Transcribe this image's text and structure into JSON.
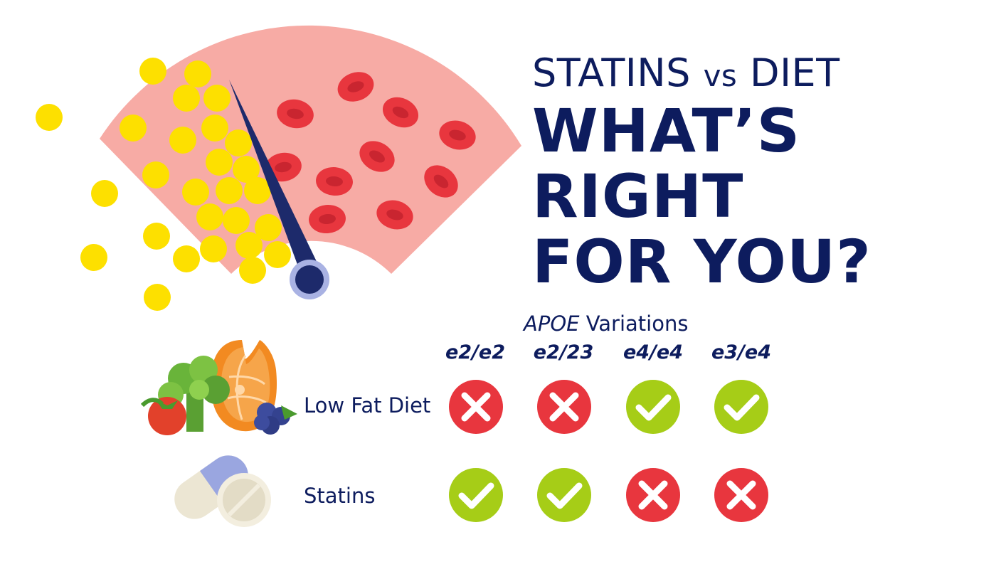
{
  "subtitle": {
    "part1": "STATINS",
    "vs": "vs",
    "part2": "DIET"
  },
  "headline": {
    "line1": "WHAT’S",
    "line2": "RIGHT",
    "line3": "FOR YOU?"
  },
  "table": {
    "caption_gene": "APOE",
    "caption_rest": " Variations",
    "columns": [
      "e2/e2",
      "e2/23",
      "e4/e4",
      "e3/e4"
    ],
    "rows": [
      {
        "label": "Low Fat Diet",
        "icon": "diet-food-icon",
        "cells": [
          "cross",
          "cross",
          "check",
          "check"
        ]
      },
      {
        "label": "Statins",
        "icon": "pills-icon",
        "cells": [
          "check",
          "check",
          "cross",
          "cross"
        ]
      }
    ]
  },
  "colors": {
    "navy": "#0d1c5e",
    "check_green": "#a6cd17",
    "cross_red": "#e8363e",
    "gauge_pink": "#f7aba5",
    "cholesterol_yellow": "#fde000",
    "blood_cell_red": "#e8363e"
  }
}
